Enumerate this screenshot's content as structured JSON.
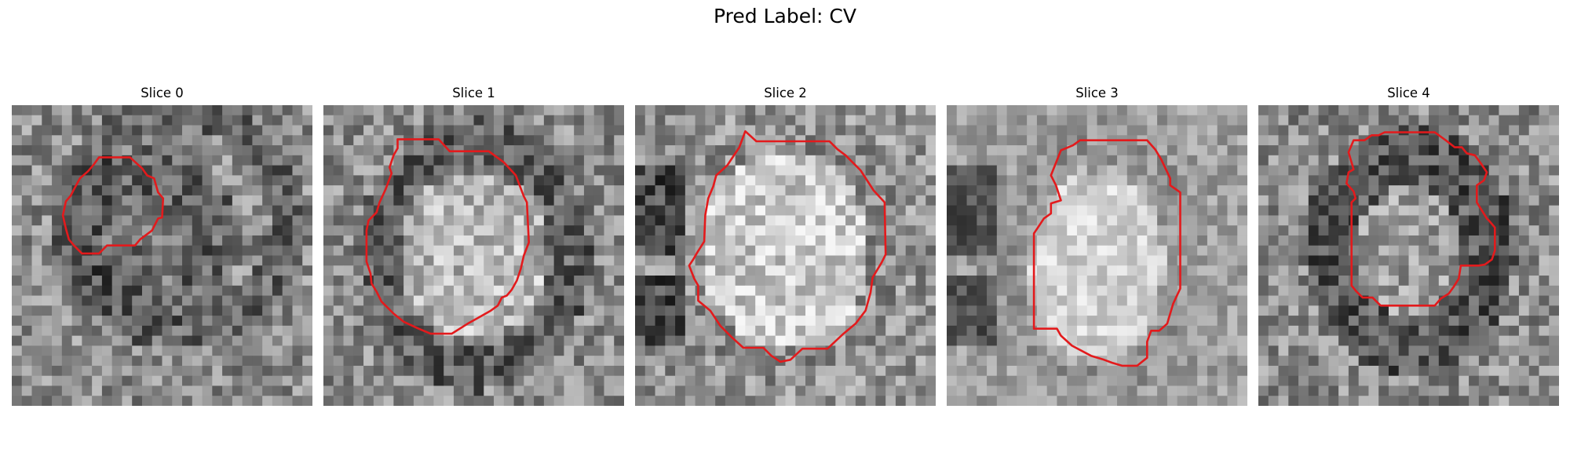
{
  "figure": {
    "title": "Pred Label: CV",
    "contour_color": "#e31a1c"
  },
  "slices": [
    {
      "title": "Slice 0",
      "seed": 11,
      "pattern": "ring-small"
    },
    {
      "title": "Slice 1",
      "seed": 23,
      "pattern": "ring-large"
    },
    {
      "title": "Slice 2",
      "seed": 37,
      "pattern": "bright-blob"
    },
    {
      "title": "Slice 3",
      "seed": 51,
      "pattern": "bright-oval"
    },
    {
      "title": "Slice 4",
      "seed": 67,
      "pattern": "dark-ring"
    }
  ]
}
